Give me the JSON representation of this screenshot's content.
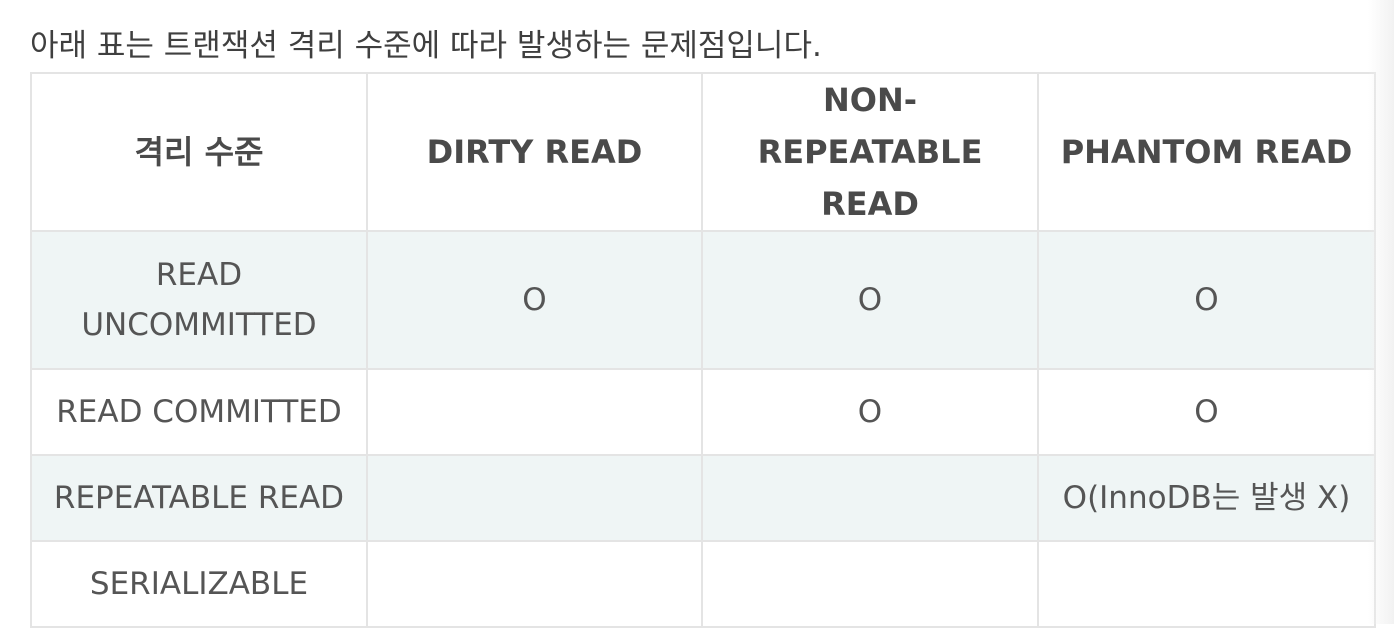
{
  "intro": "아래 표는 트랜잭션 격리 수준에 따라 발생하는 문제점입니다.",
  "table": {
    "headers": [
      "격리 수준",
      "DIRTY READ",
      "NON-REPEATABLE READ",
      "PHANTOM READ"
    ],
    "rows": [
      [
        "READ UNCOMMITTED",
        "O",
        "O",
        "O"
      ],
      [
        "READ COMMITTED",
        "",
        "O",
        "O"
      ],
      [
        "REPEATABLE READ",
        "",
        "",
        "O(InnoDB는 발생 X)"
      ],
      [
        "SERIALIZABLE",
        "",
        "",
        ""
      ]
    ]
  }
}
